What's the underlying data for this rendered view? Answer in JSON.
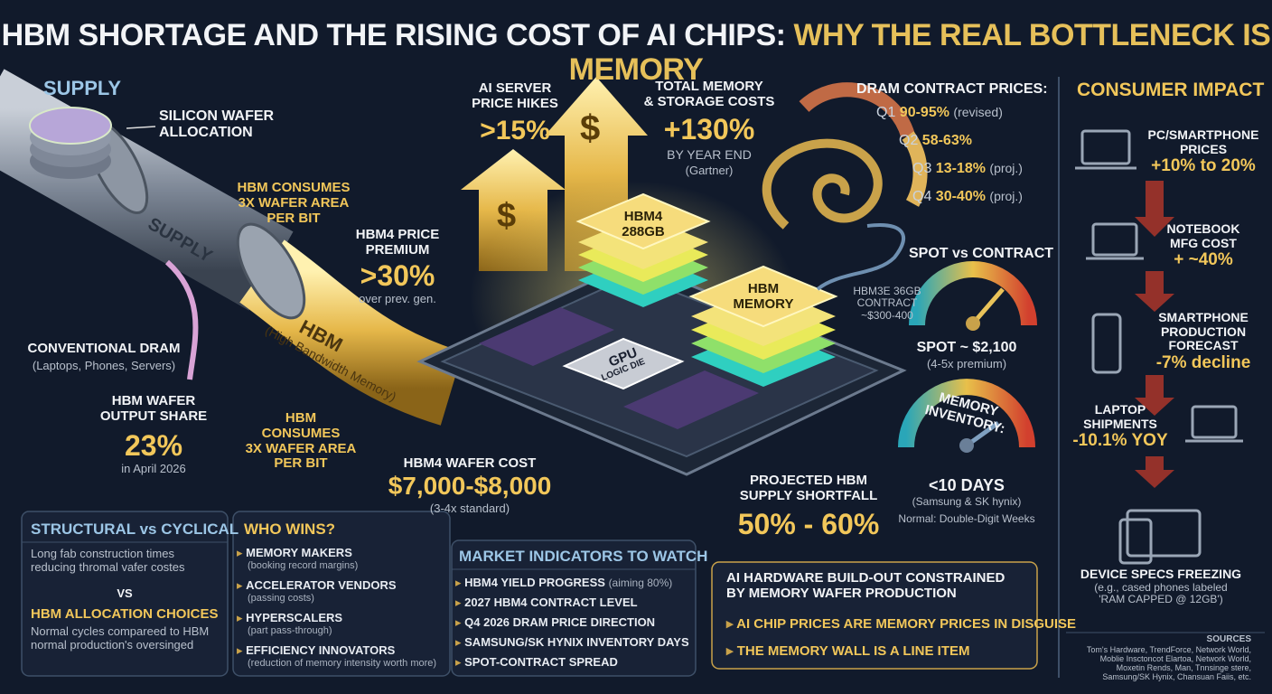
{
  "header": {
    "title_main": "HBM SHORTAGE AND THE RISING COST OF AI CHIPS:",
    "title_accent": "WHY THE REAL BOTTLENECK IS MEMORY"
  },
  "supply": {
    "heading": "SUPPLY",
    "pipe_label": "SUPPLY",
    "wafer_label": "SILICON WAFER\nALLOCATION",
    "consumes_top": "HBM CONSUMES\n3X WAFER AREA\nPER BIT",
    "conventional_title": "CONVENTIONAL DRAM",
    "conventional_note": "(Laptops, Phones, Servers)",
    "hbm_pipe_title": "HBM",
    "hbm_pipe_note": "(High Bandwidth Memory)",
    "share_label": "HBM WAFER\nOUTPUT SHARE",
    "share_value": "23%",
    "share_note": "in April 2026",
    "consumes_bottom": "HBM\nCONSUMES\n3X WAFER AREA\nPER BIT"
  },
  "center": {
    "server_label": "AI SERVER\nPRICE HIKES",
    "server_value": ">15%",
    "total_label": "TOTAL MEMORY\n& STORAGE COSTS",
    "total_value": "+130%",
    "total_note": "BY YEAR END",
    "total_source": "(Gartner)",
    "premium_label": "HBM4 PRICE\nPREMIUM",
    "premium_value": ">30%",
    "premium_note": "over prev. gen.",
    "stack1": "HBM4\n288GB",
    "stack2": "HBM\nMEMORY",
    "gpu": "GPU",
    "gpu_sub": "LOGIC DIE",
    "wafer_cost_label": "HBM4 WAFER COST",
    "wafer_cost_value": "$7,000-$8,000",
    "wafer_cost_note": "(3-4x standard)",
    "shortfall_label": "PROJECTED HBM\nSUPPLY SHORTFALL",
    "shortfall_value": "50% - 60%",
    "dollar": "$"
  },
  "dram": {
    "title": "DRAM CONTRACT PRICES:",
    "rows": [
      {
        "quarter": "Q1",
        "value": "90-95%",
        "note": "(revised)"
      },
      {
        "quarter": "Q2",
        "value": "58-63%",
        "note": ""
      },
      {
        "quarter": "Q3",
        "value": "13-18%",
        "note": "(proj.)"
      },
      {
        "quarter": "Q4",
        "value": "30-40%",
        "note": "(proj.)"
      }
    ]
  },
  "spot": {
    "title": "SPOT vs CONTRACT",
    "contract": "HBM3E 36GB\nCONTRACT\n~$300-400",
    "spot": "SPOT ~ $2,100",
    "note": "(4-5x premium)"
  },
  "inventory": {
    "title": "MEMORY INVENTORY:",
    "value": "<10 DAYS",
    "note": "(Samsung & SK hynix)",
    "normal": "Normal: Double-Digit Weeks"
  },
  "consumer": {
    "heading": "CONSUMER IMPACT",
    "items": [
      {
        "label": "PC/SMARTPHONE\nPRICES",
        "value": "+10% to 20%"
      },
      {
        "label": "NOTEBOOK\nMFG COST",
        "value": "+ ~40%"
      },
      {
        "label": "SMARTPHONE\nPRODUCTION\nFORECAST",
        "value": "-7% decline"
      },
      {
        "label": "LAPTOP\nSHIPMENTS",
        "value": "-10.1% YOY"
      },
      {
        "label": "DEVICE SPECS FREEZING",
        "value": "(e.g., cased phones labeled\n'RAM CAPPED @ 12GB')"
      }
    ],
    "sources_heading": "SOURCES",
    "sources": "Tom's Hardware, TrendForce, Network World,\nMoblie Insctoncot Elartoa, Network World,\nMoxetin Rends, Man, Tnnsinge stere,\nSamsung/SK Hynix, Chansuan Faiis, etc."
  },
  "structural": {
    "title": "STRUCTURAL vs CYCLICAL",
    "text1": "Long fab construction times\nreducing thromal vafer costes",
    "vs": "VS",
    "title2": "HBM ALLOCATION CHOICES",
    "text2": "Normal cycles compareed to HBM\nnormal production's oversinged"
  },
  "who_wins": {
    "title": "WHO WINS?",
    "items": [
      {
        "name": "MEMORY MAKERS",
        "note": "(booking record margins)"
      },
      {
        "name": "ACCELERATOR VENDORS",
        "note": "(passing costs)"
      },
      {
        "name": "HYPERSCALERS",
        "note": "(part pass-through)"
      },
      {
        "name": "EFFICIENCY INNOVATORS",
        "note": "(reduction of memory intensity worth more)"
      }
    ]
  },
  "market": {
    "title": "MARKET INDICATORS TO WATCH",
    "items": [
      {
        "name": "HBM4 YIELD PROGRESS",
        "note": "(aiming 80%)"
      },
      {
        "name": "2027 HBM4 CONTRACT LEVEL",
        "note": ""
      },
      {
        "name": "Q4 2026 DRAM PRICE DIRECTION",
        "note": ""
      },
      {
        "name": "SAMSUNG/SK HYNIX INVENTORY DAYS",
        "note": ""
      },
      {
        "name": "SPOT-CONTRACT SPREAD",
        "note": ""
      }
    ]
  },
  "callout": {
    "line1": "AI HARDWARE BUILD-OUT CONSTRAINED\nBY MEMORY WAFER PRODUCTION",
    "line2": "AI CHIP PRICES ARE MEMORY PRICES IN DISGUISE",
    "line3": "THE MEMORY WALL IS A LINE ITEM"
  }
}
